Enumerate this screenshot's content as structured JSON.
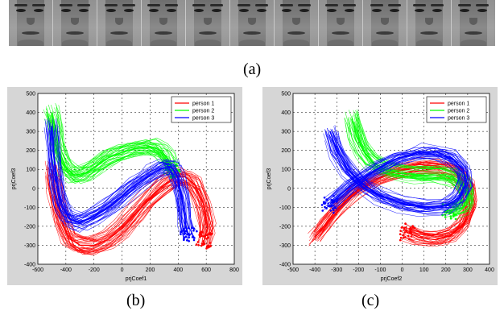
{
  "face_strip": {
    "frames": 11,
    "icon": "face-photo-icon"
  },
  "captions": {
    "a": "(a)",
    "b": "(b)",
    "c": "(c)"
  },
  "colors": {
    "person1": "#ff0000",
    "person2": "#00ff00",
    "person3": "#0000ff",
    "frame_bg": "#d6d6d6",
    "axes_bg": "#ffffff"
  },
  "chart_data": [
    {
      "type": "line",
      "panel": "b",
      "xlabel": "prjCoef1",
      "ylabel": "prjCoef3",
      "xlim": [
        -600,
        800
      ],
      "ylim": [
        -400,
        500
      ],
      "xticks": [
        -600,
        -400,
        -200,
        0,
        200,
        400,
        600,
        800
      ],
      "yticks": [
        -400,
        -300,
        -200,
        -100,
        0,
        100,
        200,
        300,
        400,
        500
      ],
      "grid": true,
      "legend_position": "top-right",
      "series": [
        {
          "name": "person 1",
          "color": "#ff0000",
          "x": [
            -500,
            -480,
            -440,
            -380,
            -300,
            -200,
            -100,
            0,
            100,
            200,
            300,
            380,
            450,
            520,
            580,
            610,
            590
          ],
          "y": [
            100,
            0,
            -150,
            -260,
            -300,
            -300,
            -270,
            -210,
            -130,
            -50,
            20,
            60,
            60,
            20,
            -80,
            -200,
            -270
          ]
        },
        {
          "name": "person 2",
          "color": "#00ff00",
          "x": [
            -500,
            -480,
            -450,
            -400,
            -340,
            -260,
            -180,
            -100,
            0,
            100,
            200,
            280,
            330,
            360
          ],
          "y": [
            400,
            330,
            200,
            110,
            70,
            80,
            120,
            160,
            190,
            210,
            220,
            200,
            150,
            100
          ]
        },
        {
          "name": "person 3",
          "color": "#0000ff",
          "x": [
            -500,
            -490,
            -470,
            -430,
            -380,
            -300,
            -200,
            -100,
            0,
            100,
            200,
            300,
            360,
            400,
            430,
            450,
            470
          ],
          "y": [
            330,
            200,
            50,
            -80,
            -160,
            -180,
            -150,
            -100,
            -40,
            20,
            70,
            110,
            110,
            50,
            -60,
            -180,
            -240
          ]
        }
      ]
    },
    {
      "type": "line",
      "panel": "c",
      "xlabel": "prjCoef2",
      "ylabel": "prjCoef3",
      "xlim": [
        -500,
        400
      ],
      "ylim": [
        -400,
        500
      ],
      "xticks": [
        -500,
        -400,
        -300,
        -200,
        -100,
        0,
        100,
        200,
        300,
        400
      ],
      "yticks": [
        -400,
        -300,
        -200,
        -100,
        0,
        100,
        200,
        300,
        400,
        500
      ],
      "grid": true,
      "legend_position": "top-right",
      "series": [
        {
          "name": "person 1",
          "color": "#ff0000",
          "x": [
            -400,
            -360,
            -300,
            -220,
            -120,
            -20,
            80,
            180,
            250,
            300,
            310,
            280,
            220,
            150,
            80,
            20
          ],
          "y": [
            -260,
            -200,
            -110,
            -20,
            50,
            90,
            110,
            110,
            80,
            0,
            -100,
            -190,
            -250,
            -270,
            -260,
            -230
          ]
        },
        {
          "name": "person 2",
          "color": "#00ff00",
          "x": [
            -230,
            -210,
            -180,
            -140,
            -80,
            0,
            80,
            160,
            230,
            280,
            300,
            280,
            220
          ],
          "y": [
            370,
            280,
            200,
            140,
            100,
            80,
            70,
            70,
            60,
            20,
            -50,
            -100,
            -120
          ]
        },
        {
          "name": "person 3",
          "color": "#0000ff",
          "x": [
            -330,
            -300,
            -250,
            -180,
            -100,
            0,
            100,
            200,
            260,
            290,
            280,
            230,
            160,
            80,
            -20,
            -120,
            -230,
            -330
          ],
          "y": [
            300,
            200,
            100,
            20,
            -40,
            -80,
            -100,
            -90,
            -50,
            20,
            100,
            160,
            190,
            190,
            160,
            100,
            20,
            -80
          ]
        }
      ]
    }
  ]
}
